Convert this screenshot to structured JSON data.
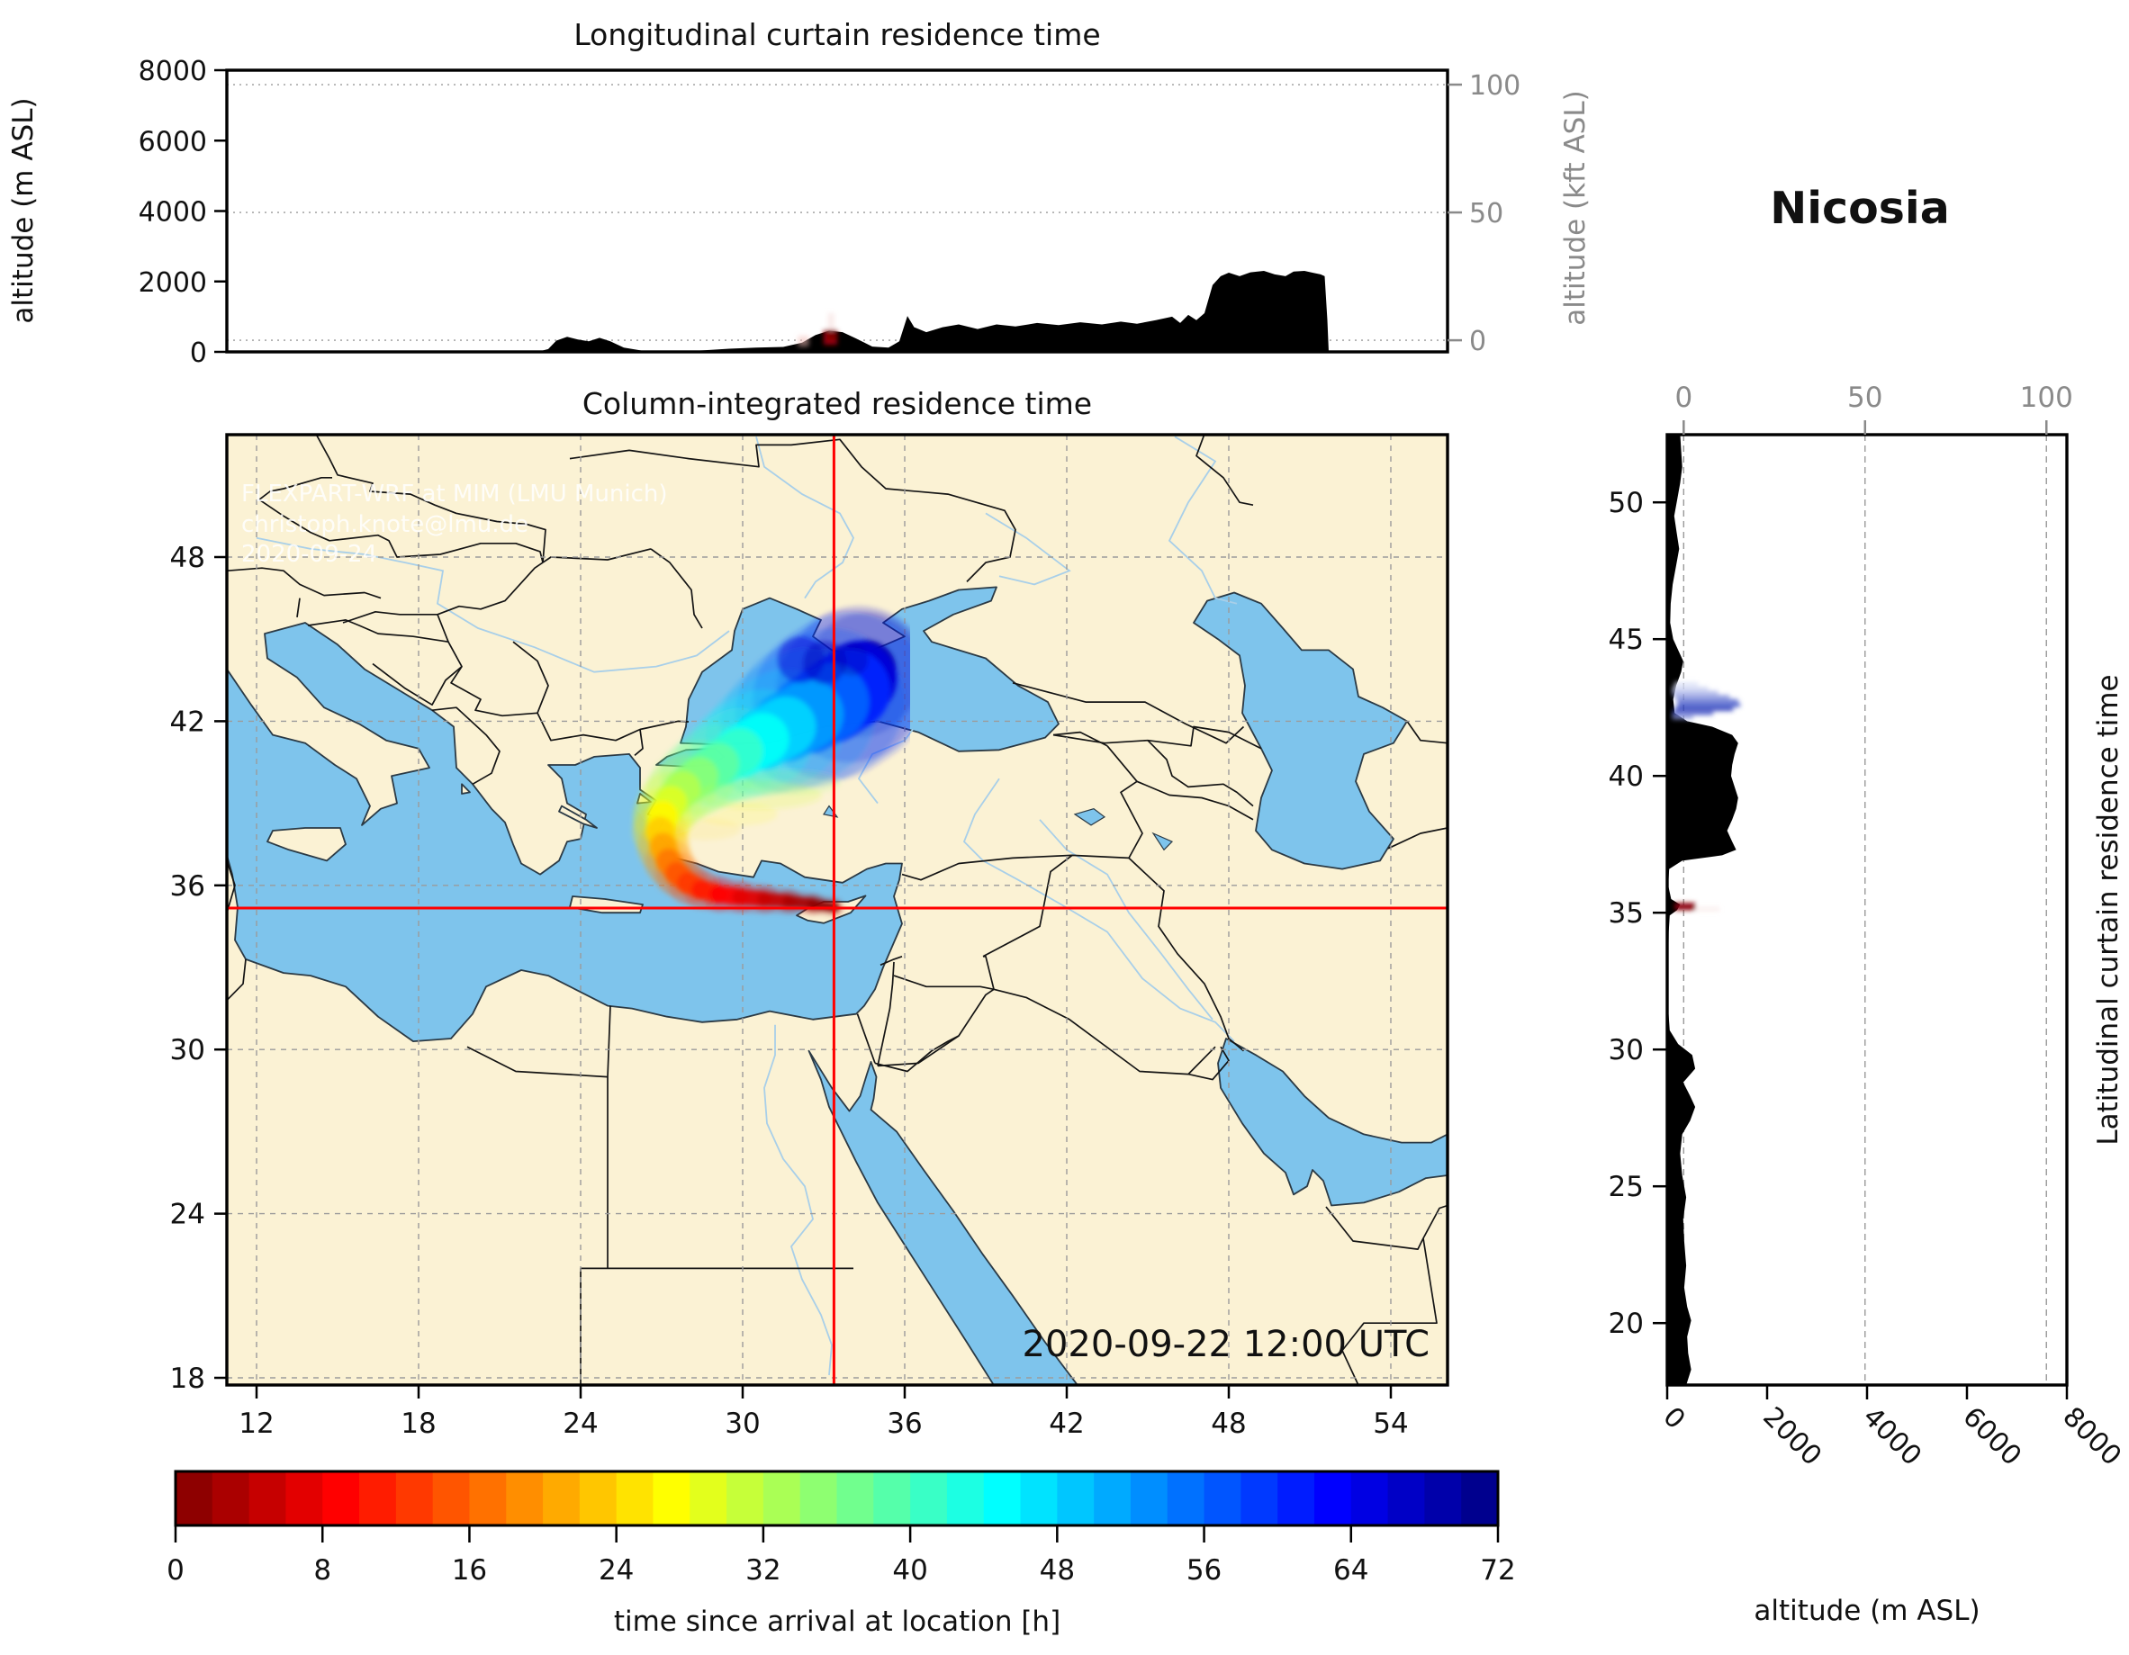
{
  "title": "Nicosia",
  "colors": {
    "land": "#FBF2D4",
    "sea": "#7EC4EC",
    "coast": "#2B3A45",
    "border": "#141414",
    "river": "#ANone",
    "river_color": "#A8CFE9",
    "grid": "#9B9B9B",
    "crosshair": "#FF0000",
    "terrain": "#000000",
    "gray_axis": "#8A8A8A",
    "watermark": "#FFFFFF"
  },
  "panels": {
    "top": {
      "title": "Longitudinal curtain residence time",
      "ylabel": "altitude (m ASL)",
      "ylabel_right": "altitude (kft ASL)",
      "yticks": [
        0,
        2000,
        4000,
        6000,
        8000
      ],
      "yticks_right": [
        0,
        50,
        100
      ],
      "ylim": [
        0,
        8000
      ]
    },
    "map": {
      "title": "Column-integrated residence time",
      "xticks": [
        12,
        18,
        24,
        30,
        36,
        42,
        48,
        54
      ],
      "yticks": [
        18,
        24,
        30,
        36,
        42,
        48
      ],
      "watermark": [
        "FLEXPART-WRF at MIM (LMU Munich)",
        "christoph.knote@lmu.de",
        "2020-09-24"
      ],
      "datetime": "2020-09-22 12:00 UTC"
    },
    "right": {
      "title": "Nicosia",
      "ylabel": "Latitudinal curtain residence time",
      "xlabel": "altitude (m ASL)",
      "xticks": [
        0,
        2000,
        4000,
        6000,
        8000
      ],
      "xticks_top": [
        0,
        50,
        100
      ],
      "yticks": [
        20,
        25,
        30,
        35,
        40,
        45,
        50
      ],
      "xlim": [
        0,
        8000
      ]
    },
    "colorbar": {
      "label": "time since arrival at location [h]",
      "ticks": [
        0,
        8,
        16,
        24,
        32,
        40,
        48,
        56,
        64,
        72
      ],
      "min": 0,
      "max": 72,
      "segments": 36,
      "colormap": "jet_reversed"
    }
  },
  "chart_data": {
    "type": "map-trajectory-with-curtains",
    "title": "Nicosia",
    "datetime_label": "2020-09-22 12:00 UTC",
    "source": {
      "name": "Nicosia",
      "lon": 33.38,
      "lat": 35.17
    },
    "map_extent": {
      "lon": [
        10.9,
        56.1
      ],
      "lat": [
        17.73,
        52.5
      ]
    },
    "time_since_arrival_hours": [
      0,
      72
    ],
    "trajectory": [
      [
        33.4,
        35.2,
        0,
        10
      ],
      [
        32.6,
        35.32,
        2,
        12
      ],
      [
        31.7,
        35.42,
        4,
        14
      ],
      [
        30.8,
        35.5,
        6,
        16
      ],
      [
        29.9,
        35.58,
        8,
        18
      ],
      [
        29.1,
        35.68,
        10,
        20
      ],
      [
        28.45,
        35.85,
        12,
        22
      ],
      [
        27.95,
        36.1,
        14,
        24
      ],
      [
        27.55,
        36.45,
        16,
        26
      ],
      [
        27.25,
        36.9,
        19,
        28
      ],
      [
        27.05,
        37.45,
        22,
        30
      ],
      [
        26.95,
        38.0,
        25,
        32
      ],
      [
        27.05,
        38.55,
        28,
        34
      ],
      [
        27.35,
        39.05,
        31,
        37
      ],
      [
        27.8,
        39.55,
        34,
        40
      ],
      [
        28.4,
        40.0,
        37,
        44
      ],
      [
        29.1,
        40.45,
        40,
        48
      ],
      [
        29.9,
        40.9,
        43,
        54
      ],
      [
        30.75,
        41.35,
        46,
        62
      ],
      [
        31.6,
        41.8,
        50,
        72
      ],
      [
        32.45,
        42.25,
        54,
        82
      ],
      [
        33.25,
        42.7,
        58,
        90
      ],
      [
        33.95,
        43.15,
        63,
        92
      ],
      [
        34.3,
        43.55,
        68,
        78
      ],
      [
        34.55,
        43.85,
        72,
        58
      ]
    ],
    "plume_fingers": [
      {
        "lon": 32.15,
        "lat": 44.25,
        "r": 26,
        "hour": 66,
        "opacity": 0.45
      },
      {
        "lon": 33.05,
        "lat": 44.15,
        "r": 24,
        "hour": 68,
        "opacity": 0.4
      },
      {
        "lon": 34.05,
        "lat": 44.25,
        "r": 18,
        "hour": 70,
        "opacity": 0.3
      }
    ],
    "plume_wisps": [
      {
        "lon": 30.6,
        "lat": 39.3,
        "rx": 70,
        "ry": 16,
        "hour": 30,
        "opacity": 0.18
      },
      {
        "lon": 31.8,
        "lat": 39.75,
        "rx": 55,
        "ry": 14,
        "hour": 34,
        "opacity": 0.15
      },
      {
        "lon": 29.8,
        "lat": 38.6,
        "rx": 45,
        "ry": 13,
        "hour": 27,
        "opacity": 0.12
      },
      {
        "lon": 28.6,
        "lat": 38.05,
        "rx": 40,
        "ry": 12,
        "hour": 24,
        "opacity": 0.1
      }
    ],
    "terrain_longitude_profile": [
      [
        10.9,
        0
      ],
      [
        22.4,
        0
      ],
      [
        22.8,
        80
      ],
      [
        23.1,
        320
      ],
      [
        23.5,
        430
      ],
      [
        23.9,
        350
      ],
      [
        24.3,
        300
      ],
      [
        24.7,
        400
      ],
      [
        25.1,
        300
      ],
      [
        25.6,
        120
      ],
      [
        26.3,
        30
      ],
      [
        27.5,
        10
      ],
      [
        28.5,
        40
      ],
      [
        29.5,
        90
      ],
      [
        30.5,
        120
      ],
      [
        31.5,
        140
      ],
      [
        32.2,
        260
      ],
      [
        32.7,
        480
      ],
      [
        33.2,
        600
      ],
      [
        33.7,
        560
      ],
      [
        34.2,
        380
      ],
      [
        34.8,
        150
      ],
      [
        35.4,
        120
      ],
      [
        35.8,
        300
      ],
      [
        36.1,
        1020
      ],
      [
        36.35,
        700
      ],
      [
        36.8,
        560
      ],
      [
        37.4,
        700
      ],
      [
        38.0,
        780
      ],
      [
        38.7,
        650
      ],
      [
        39.4,
        780
      ],
      [
        40.1,
        720
      ],
      [
        40.9,
        820
      ],
      [
        41.7,
        760
      ],
      [
        42.5,
        840
      ],
      [
        43.3,
        780
      ],
      [
        44.0,
        860
      ],
      [
        44.6,
        800
      ],
      [
        45.3,
        900
      ],
      [
        45.9,
        1000
      ],
      [
        46.2,
        820
      ],
      [
        46.5,
        1050
      ],
      [
        46.8,
        900
      ],
      [
        47.1,
        1100
      ],
      [
        47.4,
        1900
      ],
      [
        47.7,
        2150
      ],
      [
        48.0,
        2250
      ],
      [
        48.4,
        2150
      ],
      [
        48.8,
        2260
      ],
      [
        49.3,
        2300
      ],
      [
        49.7,
        2200
      ],
      [
        50.1,
        2150
      ],
      [
        50.4,
        2280
      ],
      [
        50.8,
        2300
      ],
      [
        51.1,
        2250
      ],
      [
        51.4,
        2200
      ],
      [
        51.55,
        2150
      ],
      [
        51.65,
        900
      ],
      [
        51.7,
        0
      ],
      [
        56.1,
        0
      ]
    ],
    "terrain_latitude_profile": [
      [
        17.73,
        380
      ],
      [
        18.3,
        480
      ],
      [
        18.9,
        420
      ],
      [
        19.5,
        400
      ],
      [
        20.1,
        480
      ],
      [
        20.6,
        400
      ],
      [
        21.3,
        340
      ],
      [
        22.1,
        380
      ],
      [
        23.0,
        340
      ],
      [
        23.8,
        320
      ],
      [
        24.6,
        380
      ],
      [
        25.4,
        300
      ],
      [
        26.2,
        260
      ],
      [
        26.9,
        300
      ],
      [
        27.4,
        460
      ],
      [
        27.9,
        560
      ],
      [
        28.3,
        460
      ],
      [
        28.8,
        320
      ],
      [
        29.3,
        560
      ],
      [
        29.8,
        500
      ],
      [
        30.2,
        220
      ],
      [
        30.7,
        50
      ],
      [
        31.5,
        20
      ],
      [
        33.0,
        20
      ],
      [
        34.3,
        30
      ],
      [
        34.9,
        50
      ],
      [
        35.1,
        200
      ],
      [
        35.3,
        260
      ],
      [
        35.5,
        80
      ],
      [
        36.0,
        20
      ],
      [
        36.6,
        40
      ],
      [
        36.9,
        300
      ],
      [
        37.1,
        1100
      ],
      [
        37.3,
        1380
      ],
      [
        37.6,
        1300
      ],
      [
        38.0,
        1200
      ],
      [
        38.4,
        1300
      ],
      [
        38.8,
        1380
      ],
      [
        39.2,
        1420
      ],
      [
        39.6,
        1350
      ],
      [
        40.0,
        1280
      ],
      [
        40.4,
        1300
      ],
      [
        40.8,
        1350
      ],
      [
        41.2,
        1420
      ],
      [
        41.5,
        1300
      ],
      [
        41.8,
        900
      ],
      [
        42.0,
        400
      ],
      [
        42.3,
        150
      ],
      [
        42.8,
        120
      ],
      [
        43.3,
        180
      ],
      [
        43.8,
        280
      ],
      [
        44.2,
        320
      ],
      [
        44.6,
        220
      ],
      [
        45.0,
        120
      ],
      [
        45.6,
        60
      ],
      [
        46.3,
        70
      ],
      [
        47.0,
        110
      ],
      [
        47.7,
        180
      ],
      [
        48.3,
        240
      ],
      [
        48.9,
        190
      ],
      [
        49.5,
        140
      ],
      [
        50.1,
        200
      ],
      [
        50.7,
        260
      ],
      [
        51.3,
        300
      ],
      [
        51.9,
        280
      ],
      [
        52.5,
        260
      ]
    ],
    "lon_curtain_cells": [
      {
        "lon0": 33.0,
        "lon1": 33.5,
        "m0": 200,
        "m1": 620,
        "color": "#990007",
        "opacity": 1
      },
      {
        "lon0": 33.15,
        "lon1": 33.45,
        "m0": 350,
        "m1": 560,
        "color": "#7A0004",
        "opacity": 1
      },
      {
        "lon0": 32.05,
        "lon1": 32.45,
        "m0": 150,
        "m1": 450,
        "color": "#F2BDB8",
        "opacity": 0.55
      },
      {
        "lon0": 33.15,
        "lon1": 33.4,
        "m0": 620,
        "m1": 1100,
        "color": "#F6DAD7",
        "opacity": 0.5
      }
    ],
    "lat_curtain_cells": [
      {
        "lat0": 35.06,
        "lat1": 35.36,
        "m0": 150,
        "m1": 560,
        "color": "#8B0008",
        "opacity": 1
      },
      {
        "lat0": 35.02,
        "lat1": 35.2,
        "m0": 560,
        "m1": 1050,
        "color": "#F3D9D6",
        "opacity": 0.45
      },
      {
        "lat0": 43.25,
        "lat1": 43.42,
        "m0": 150,
        "m1": 620,
        "color": "#DFE4F8",
        "opacity": 1
      },
      {
        "lat0": 43.1,
        "lat1": 43.25,
        "m0": 100,
        "m1": 820,
        "color": "#CCD3F2",
        "opacity": 1
      },
      {
        "lat0": 42.95,
        "lat1": 43.1,
        "m0": 100,
        "m1": 1020,
        "color": "#AAB4E8",
        "opacity": 1
      },
      {
        "lat0": 42.8,
        "lat1": 42.95,
        "m0": 150,
        "m1": 1250,
        "color": "#8290DC",
        "opacity": 1
      },
      {
        "lat0": 42.65,
        "lat1": 42.8,
        "m0": 200,
        "m1": 1420,
        "color": "#5468CF",
        "opacity": 1
      },
      {
        "lat0": 42.5,
        "lat1": 42.65,
        "m0": 200,
        "m1": 1460,
        "color": "#2F45C3",
        "opacity": 1
      },
      {
        "lat0": 42.35,
        "lat1": 42.5,
        "m0": 150,
        "m1": 1320,
        "color": "#1E2FB5",
        "opacity": 1
      },
      {
        "lat0": 42.2,
        "lat1": 42.35,
        "m0": 100,
        "m1": 920,
        "color": "#4353C8",
        "opacity": 1
      },
      {
        "lat0": 42.05,
        "lat1": 42.2,
        "m0": 100,
        "m1": 520,
        "color": "#8E9ADF",
        "opacity": 1
      }
    ]
  }
}
